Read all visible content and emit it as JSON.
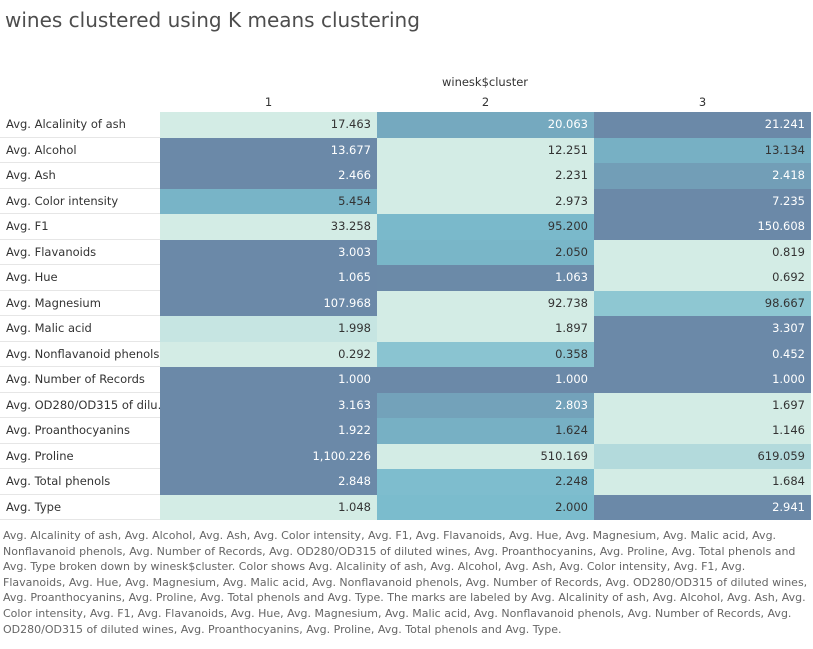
{
  "chart_data": {
    "type": "heatmap",
    "title": "wines clustered using K means clustering",
    "column_field": "winesk$cluster",
    "columns": [
      "1",
      "2",
      "3"
    ],
    "rows": [
      {
        "label": "Avg. Alcalinity of ash",
        "values": [
          17.463,
          20.063,
          21.241
        ],
        "labels": [
          "17.463",
          "20.063",
          "21.241"
        ]
      },
      {
        "label": "Avg. Alcohol",
        "values": [
          13.677,
          12.251,
          13.134
        ],
        "labels": [
          "13.677",
          "12.251",
          "13.134"
        ]
      },
      {
        "label": "Avg. Ash",
        "values": [
          2.466,
          2.231,
          2.418
        ],
        "labels": [
          "2.466",
          "2.231",
          "2.418"
        ]
      },
      {
        "label": "Avg. Color intensity",
        "values": [
          5.454,
          2.973,
          7.235
        ],
        "labels": [
          "5.454",
          "2.973",
          "7.235"
        ]
      },
      {
        "label": "Avg. F1",
        "values": [
          33.258,
          95.2,
          150.608
        ],
        "labels": [
          "33.258",
          "95.200",
          "150.608"
        ]
      },
      {
        "label": "Avg. Flavanoids",
        "values": [
          3.003,
          2.05,
          0.819
        ],
        "labels": [
          "3.003",
          "2.050",
          "0.819"
        ]
      },
      {
        "label": "Avg. Hue",
        "values": [
          1.065,
          1.063,
          0.692
        ],
        "labels": [
          "1.065",
          "1.063",
          "0.692"
        ]
      },
      {
        "label": "Avg. Magnesium",
        "values": [
          107.968,
          92.738,
          98.667
        ],
        "labels": [
          "107.968",
          "92.738",
          "98.667"
        ]
      },
      {
        "label": "Avg. Malic acid",
        "values": [
          1.998,
          1.897,
          3.307
        ],
        "labels": [
          "1.998",
          "1.897",
          "3.307"
        ]
      },
      {
        "label": "Avg. Nonflavanoid phenols",
        "values": [
          0.292,
          0.358,
          0.452
        ],
        "labels": [
          "0.292",
          "0.358",
          "0.452"
        ]
      },
      {
        "label": "Avg. Number of Records",
        "values": [
          1.0,
          1.0,
          1.0
        ],
        "labels": [
          "1.000",
          "1.000",
          "1.000"
        ]
      },
      {
        "label": "Avg. OD280/OD315 of dilu..",
        "values": [
          3.163,
          2.803,
          1.697
        ],
        "labels": [
          "3.163",
          "2.803",
          "1.697"
        ]
      },
      {
        "label": "Avg. Proanthocyanins",
        "values": [
          1.922,
          1.624,
          1.146
        ],
        "labels": [
          "1.922",
          "1.624",
          "1.146"
        ]
      },
      {
        "label": "Avg. Proline",
        "values": [
          1100.226,
          510.169,
          619.059
        ],
        "labels": [
          "1,100.226",
          "510.169",
          "619.059"
        ]
      },
      {
        "label": "Avg. Total phenols",
        "values": [
          2.848,
          2.248,
          1.684
        ],
        "labels": [
          "2.848",
          "2.248",
          "1.684"
        ]
      },
      {
        "label": "Avg. Type",
        "values": [
          1.048,
          2.0,
          2.941
        ],
        "labels": [
          "1.048",
          "2.000",
          "2.941"
        ]
      }
    ],
    "color_scale": {
      "low": "#d3ece5",
      "mid": "#7bbccd",
      "high": "#6b89a8"
    },
    "caption": "Avg. Alcalinity of ash, Avg. Alcohol, Avg. Ash, Avg. Color intensity, Avg. F1, Avg. Flavanoids, Avg. Hue, Avg. Magnesium, Avg. Malic acid, Avg. Nonflavanoid phenols, Avg. Number of Records, Avg. OD280/OD315 of diluted wines, Avg. Proanthocyanins, Avg. Proline, Avg. Total phenols and Avg. Type broken down by winesk$cluster.  Color shows Avg. Alcalinity of ash, Avg. Alcohol, Avg. Ash, Avg. Color intensity, Avg. F1, Avg. Flavanoids, Avg. Hue, Avg. Magnesium, Avg. Malic acid, Avg. Nonflavanoid phenols, Avg. Number of Records, Avg. OD280/OD315 of diluted wines, Avg. Proanthocyanins, Avg. Proline, Avg. Total phenols and Avg. Type.  The marks are labeled by Avg. Alcalinity of ash, Avg. Alcohol, Avg. Ash, Avg. Color intensity, Avg. F1, Avg. Flavanoids, Avg. Hue, Avg. Magnesium, Avg. Malic acid, Avg. Nonflavanoid phenols, Avg. Number of Records, Avg. OD280/OD315 of diluted wines, Avg. Proanthocyanins, Avg. Proline, Avg. Total phenols and Avg. Type."
  }
}
